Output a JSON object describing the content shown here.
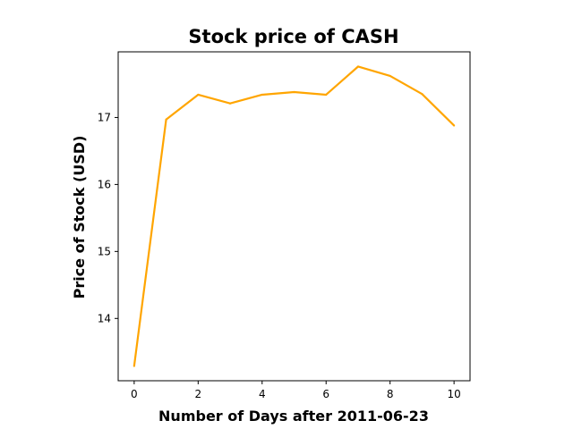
{
  "chart_data": {
    "type": "line",
    "title": "Stock price of CASH",
    "xlabel": "Number of Days after 2011-06-23",
    "ylabel": "Price of Stock (USD)",
    "x": [
      0,
      1,
      2,
      3,
      4,
      5,
      6,
      7,
      8,
      9,
      10
    ],
    "series": [
      {
        "values": [
          13.29,
          16.97,
          17.34,
          17.21,
          17.34,
          17.38,
          17.34,
          17.76,
          17.62,
          17.35,
          16.88
        ],
        "color": "#ffa500"
      }
    ],
    "xlim": [
      -0.5,
      10.5
    ],
    "ylim": [
      13.07,
      17.98
    ],
    "xticks": [
      0,
      2,
      4,
      6,
      8,
      10
    ],
    "yticks": [
      14,
      15,
      16,
      17
    ],
    "grid": false,
    "legend": "none"
  }
}
